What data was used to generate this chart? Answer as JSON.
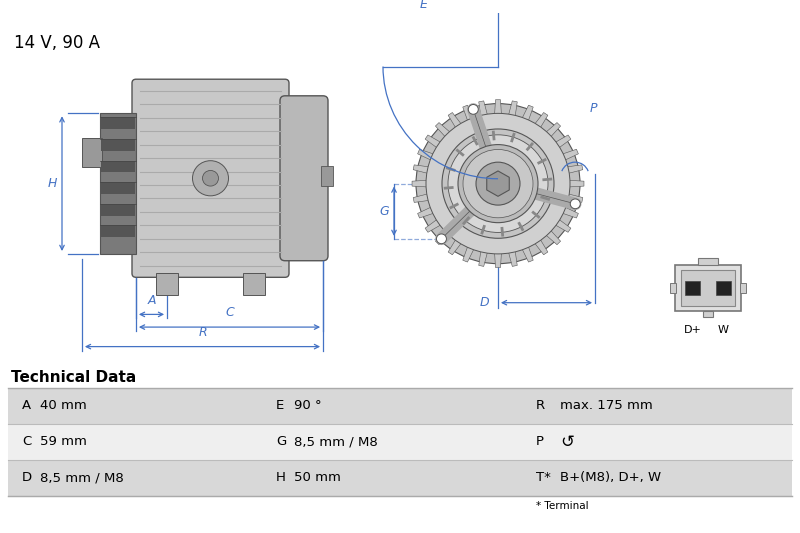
{
  "title": "14 V, 90 A",
  "title_fontsize": 12,
  "section_header": "Technical Data",
  "table_rows": [
    [
      "A",
      "40 mm",
      "E",
      "90 °",
      "R",
      "max. 175 mm"
    ],
    [
      "C",
      "59 mm",
      "G",
      "8,5 mm / M8",
      "P",
      "↺"
    ],
    [
      "D",
      "8,5 mm / M8",
      "H",
      "50 mm",
      "T*",
      "B+(M8), D+, W"
    ]
  ],
  "footnote": "* Terminal",
  "bg_color": "#ffffff",
  "row_colors": [
    "#d8d8d8",
    "#efefef",
    "#d8d8d8"
  ],
  "dim_color": "#4472c4",
  "draw_lc": "#555555",
  "draw_fc_body": "#d4d4d4",
  "draw_fc_pulley": "#888888",
  "draw_fc_dark": "#666666"
}
